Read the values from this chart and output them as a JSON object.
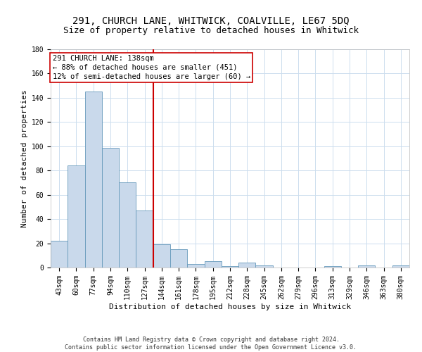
{
  "title": "291, CHURCH LANE, WHITWICK, COALVILLE, LE67 5DQ",
  "subtitle": "Size of property relative to detached houses in Whitwick",
  "xlabel": "Distribution of detached houses by size in Whitwick",
  "ylabel": "Number of detached properties",
  "categories": [
    "43sqm",
    "60sqm",
    "77sqm",
    "94sqm",
    "110sqm",
    "127sqm",
    "144sqm",
    "161sqm",
    "178sqm",
    "195sqm",
    "212sqm",
    "228sqm",
    "245sqm",
    "262sqm",
    "279sqm",
    "296sqm",
    "313sqm",
    "329sqm",
    "346sqm",
    "363sqm",
    "380sqm"
  ],
  "values": [
    22,
    84,
    145,
    99,
    70,
    47,
    19,
    15,
    3,
    5,
    1,
    4,
    2,
    0,
    0,
    0,
    1,
    0,
    2,
    0,
    2
  ],
  "bar_color": "#c9d9eb",
  "bar_edge_color": "#6699bb",
  "ylim": [
    0,
    180
  ],
  "yticks": [
    0,
    20,
    40,
    60,
    80,
    100,
    120,
    140,
    160,
    180
  ],
  "vline_x": 5.5,
  "vline_color": "#cc0000",
  "annotation_text": "291 CHURCH LANE: 138sqm\n← 88% of detached houses are smaller (451)\n12% of semi-detached houses are larger (60) →",
  "annotation_box_color": "#ffffff",
  "annotation_box_edge": "#cc0000",
  "footer_line1": "Contains HM Land Registry data © Crown copyright and database right 2024.",
  "footer_line2": "Contains public sector information licensed under the Open Government Licence v3.0.",
  "bg_color": "#ffffff",
  "grid_color": "#ccddee",
  "title_fontsize": 10,
  "subtitle_fontsize": 9,
  "axis_label_fontsize": 8,
  "tick_fontsize": 7,
  "annotation_fontsize": 7.5
}
